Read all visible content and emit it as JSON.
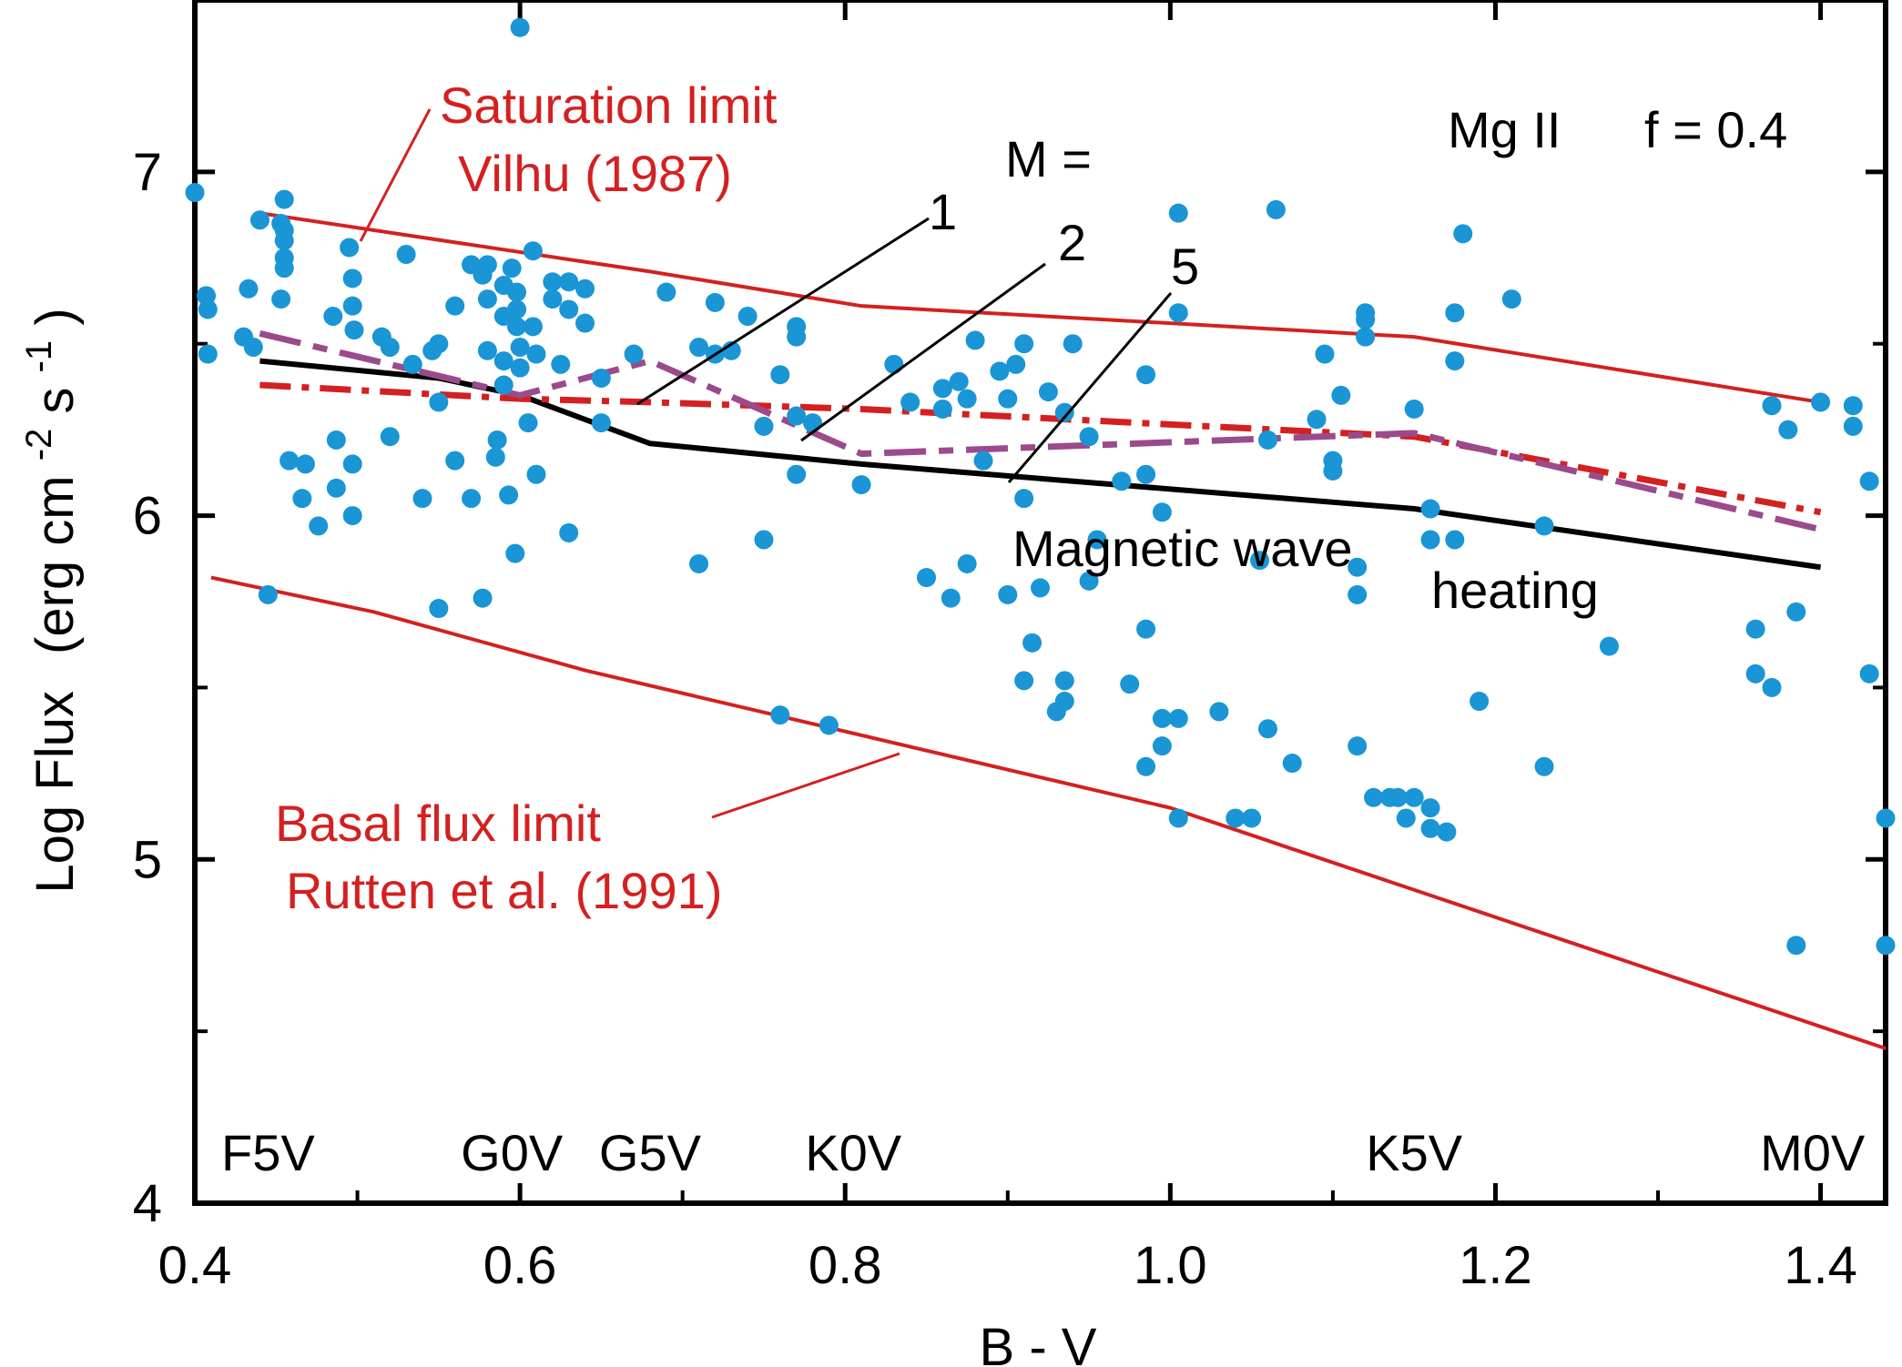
{
  "chart_data": {
    "type": "scatter",
    "xlabel": "B - V",
    "ylabel": "Log Flux",
    "ylabel_unit": {
      "open": "(erg cm",
      "exp1": "-2",
      "mid": "s",
      "exp2": "-1",
      "close": ")"
    },
    "xlim": [
      0.4,
      1.44
    ],
    "ylim": [
      4.0,
      7.5
    ],
    "x_ticks": [
      0.4,
      0.6,
      0.8,
      1.0,
      1.2,
      1.4
    ],
    "x_tick_labels": [
      "0.4",
      "0.6",
      "0.8",
      "1.0",
      "1.2",
      "1.4"
    ],
    "y_ticks": [
      4,
      5,
      6,
      7
    ],
    "y_tick_labels": [
      "4",
      "5",
      "6",
      "7"
    ],
    "colors": {
      "points": "#1a95d5",
      "limits": "#d42020",
      "m1": "#000000",
      "m2": "#d42020",
      "m5": "#9b4a8c"
    },
    "annotations": {
      "ion": "Mg II",
      "filling": "f = 0.4",
      "m_label": "M =",
      "m1": "1",
      "m2": "2",
      "m5": "5",
      "saturation_line1": "Saturation limit",
      "saturation_line2": "Vilhu (1987)",
      "basal_line1": "Basal flux limit",
      "basal_line2": "Rutten et al. (1991)",
      "mag_wave": "Magnetic wave",
      "heating": "heating"
    },
    "spectral_types": [
      {
        "label": "F5V",
        "x": 0.445
      },
      {
        "label": "G0V",
        "x": 0.595
      },
      {
        "label": "G5V",
        "x": 0.68
      },
      {
        "label": "K0V",
        "x": 0.805
      },
      {
        "label": "K5V",
        "x": 1.15
      },
      {
        "label": "M0V",
        "x": 1.395
      }
    ],
    "series": [
      {
        "name": "Saturation limit",
        "style": "solid",
        "color": "#d42020",
        "x": [
          0.44,
          0.68,
          0.81,
          1.15,
          1.4
        ],
        "y": [
          6.88,
          6.71,
          6.61,
          6.52,
          6.33
        ]
      },
      {
        "name": "Basal flux limit",
        "style": "solid",
        "color": "#d42020",
        "x": [
          0.41,
          0.51,
          0.64,
          1.0,
          1.44
        ],
        "y": [
          5.82,
          5.72,
          5.55,
          5.15,
          4.45
        ]
      },
      {
        "name": "1",
        "style": "solid",
        "color": "#000000",
        "x": [
          0.44,
          0.55,
          0.6,
          0.68,
          0.81,
          1.15,
          1.4
        ],
        "y": [
          6.45,
          6.4,
          6.35,
          6.21,
          6.15,
          6.02,
          5.85
        ]
      },
      {
        "name": "2",
        "style": "dashdot",
        "color": "#d42020",
        "x": [
          0.44,
          0.6,
          0.68,
          0.81,
          1.15,
          1.4
        ],
        "y": [
          6.38,
          6.34,
          6.33,
          6.31,
          6.23,
          6.01
        ]
      },
      {
        "name": "5",
        "style": "longdash",
        "color": "#9b4a8c",
        "x": [
          0.44,
          0.6,
          0.68,
          0.81,
          1.15,
          1.4
        ],
        "y": [
          6.53,
          6.35,
          6.45,
          6.18,
          6.24,
          5.96
        ]
      }
    ],
    "points": [
      [
        0.4,
        6.94
      ],
      [
        0.407,
        6.64
      ],
      [
        0.408,
        6.6
      ],
      [
        0.408,
        6.47
      ],
      [
        0.43,
        6.52
      ],
      [
        0.433,
        6.66
      ],
      [
        0.436,
        6.49
      ],
      [
        0.44,
        6.86
      ],
      [
        0.445,
        5.77
      ],
      [
        0.453,
        6.85
      ],
      [
        0.455,
        6.92
      ],
      [
        0.455,
        6.83
      ],
      [
        0.455,
        6.8
      ],
      [
        0.455,
        6.75
      ],
      [
        0.455,
        6.72
      ],
      [
        0.453,
        6.63
      ],
      [
        0.458,
        6.16
      ],
      [
        0.466,
        6.05
      ],
      [
        0.468,
        6.15
      ],
      [
        0.476,
        5.97
      ],
      [
        0.485,
        6.58
      ],
      [
        0.487,
        6.22
      ],
      [
        0.487,
        6.08
      ],
      [
        0.495,
        6.78
      ],
      [
        0.497,
        6.69
      ],
      [
        0.497,
        6.61
      ],
      [
        0.498,
        6.54
      ],
      [
        0.497,
        6.15
      ],
      [
        0.497,
        6.0
      ],
      [
        0.515,
        6.52
      ],
      [
        0.52,
        6.49
      ],
      [
        0.52,
        6.23
      ],
      [
        0.53,
        6.76
      ],
      [
        0.534,
        6.44
      ],
      [
        0.54,
        6.05
      ],
      [
        0.546,
        6.48
      ],
      [
        0.55,
        6.5
      ],
      [
        0.55,
        6.33
      ],
      [
        0.55,
        5.73
      ],
      [
        0.56,
        6.16
      ],
      [
        0.56,
        6.61
      ],
      [
        0.57,
        6.73
      ],
      [
        0.57,
        6.05
      ],
      [
        0.577,
        6.7
      ],
      [
        0.577,
        5.76
      ],
      [
        0.58,
        6.73
      ],
      [
        0.58,
        6.63
      ],
      [
        0.58,
        6.48
      ],
      [
        0.586,
        6.22
      ],
      [
        0.585,
        6.17
      ],
      [
        0.59,
        6.58
      ],
      [
        0.59,
        6.45
      ],
      [
        0.59,
        6.38
      ],
      [
        0.59,
        6.67
      ],
      [
        0.593,
        6.06
      ],
      [
        0.595,
        6.72
      ],
      [
        0.598,
        6.65
      ],
      [
        0.598,
        6.6
      ],
      [
        0.598,
        6.55
      ],
      [
        0.597,
        5.89
      ],
      [
        0.6,
        6.49
      ],
      [
        0.6,
        6.43
      ],
      [
        0.6,
        7.42
      ],
      [
        0.605,
        6.27
      ],
      [
        0.608,
        6.77
      ],
      [
        0.608,
        6.55
      ],
      [
        0.61,
        6.47
      ],
      [
        0.61,
        6.12
      ],
      [
        0.62,
        6.68
      ],
      [
        0.62,
        6.63
      ],
      [
        0.625,
        6.44
      ],
      [
        0.63,
        5.95
      ],
      [
        0.63,
        6.6
      ],
      [
        0.63,
        6.68
      ],
      [
        0.64,
        6.56
      ],
      [
        0.64,
        6.66
      ],
      [
        0.65,
        6.27
      ],
      [
        0.65,
        6.4
      ],
      [
        0.67,
        6.47
      ],
      [
        0.69,
        6.65
      ],
      [
        0.71,
        6.49
      ],
      [
        0.71,
        5.86
      ],
      [
        0.72,
        6.62
      ],
      [
        0.72,
        6.47
      ],
      [
        0.73,
        6.48
      ],
      [
        0.74,
        6.58
      ],
      [
        0.75,
        5.93
      ],
      [
        0.75,
        6.26
      ],
      [
        0.76,
        6.41
      ],
      [
        0.76,
        5.42
      ],
      [
        0.77,
        6.55
      ],
      [
        0.77,
        6.52
      ],
      [
        0.77,
        6.29
      ],
      [
        0.77,
        6.12
      ],
      [
        0.78,
        6.27
      ],
      [
        0.79,
        5.39
      ],
      [
        0.81,
        6.09
      ],
      [
        0.83,
        6.44
      ],
      [
        0.84,
        6.33
      ],
      [
        0.85,
        5.82
      ],
      [
        0.86,
        6.37
      ],
      [
        0.86,
        6.31
      ],
      [
        0.865,
        5.76
      ],
      [
        0.87,
        6.39
      ],
      [
        0.875,
        5.86
      ],
      [
        0.875,
        6.34
      ],
      [
        0.88,
        6.51
      ],
      [
        0.885,
        6.16
      ],
      [
        0.895,
        6.42
      ],
      [
        0.9,
        6.34
      ],
      [
        0.9,
        5.77
      ],
      [
        0.905,
        6.44
      ],
      [
        0.91,
        6.5
      ],
      [
        0.91,
        5.52
      ],
      [
        0.91,
        6.05
      ],
      [
        0.915,
        5.63
      ],
      [
        0.92,
        5.79
      ],
      [
        0.925,
        6.36
      ],
      [
        0.93,
        5.43
      ],
      [
        0.935,
        6.3
      ],
      [
        0.935,
        5.52
      ],
      [
        0.935,
        5.46
      ],
      [
        0.94,
        6.5
      ],
      [
        0.95,
        6.23
      ],
      [
        0.95,
        5.81
      ],
      [
        0.955,
        5.93
      ],
      [
        0.97,
        6.1
      ],
      [
        0.975,
        5.51
      ],
      [
        0.985,
        6.41
      ],
      [
        0.985,
        6.12
      ],
      [
        0.985,
        5.67
      ],
      [
        0.985,
        5.27
      ],
      [
        0.995,
        5.33
      ],
      [
        0.995,
        5.41
      ],
      [
        0.995,
        6.01
      ],
      [
        1.005,
        5.41
      ],
      [
        1.005,
        5.12
      ],
      [
        1.005,
        6.59
      ],
      [
        1.005,
        6.88
      ],
      [
        1.03,
        5.43
      ],
      [
        1.04,
        5.12
      ],
      [
        1.05,
        5.12
      ],
      [
        1.055,
        5.87
      ],
      [
        1.06,
        5.38
      ],
      [
        1.06,
        6.22
      ],
      [
        1.065,
        6.89
      ],
      [
        1.075,
        5.28
      ],
      [
        1.09,
        6.28
      ],
      [
        1.095,
        6.47
      ],
      [
        1.1,
        6.16
      ],
      [
        1.1,
        6.13
      ],
      [
        1.105,
        6.35
      ],
      [
        1.115,
        5.85
      ],
      [
        1.115,
        5.77
      ],
      [
        1.115,
        5.33
      ],
      [
        1.12,
        6.59
      ],
      [
        1.12,
        6.57
      ],
      [
        1.12,
        6.52
      ],
      [
        1.125,
        5.18
      ],
      [
        1.135,
        5.18
      ],
      [
        1.14,
        5.18
      ],
      [
        1.145,
        5.12
      ],
      [
        1.15,
        5.18
      ],
      [
        1.15,
        6.31
      ],
      [
        1.16,
        6.02
      ],
      [
        1.16,
        5.93
      ],
      [
        1.16,
        5.15
      ],
      [
        1.16,
        5.09
      ],
      [
        1.17,
        5.08
      ],
      [
        1.175,
        6.45
      ],
      [
        1.175,
        6.59
      ],
      [
        1.175,
        5.93
      ],
      [
        1.18,
        6.82
      ],
      [
        1.19,
        5.46
      ],
      [
        1.21,
        6.63
      ],
      [
        1.23,
        5.97
      ],
      [
        1.23,
        5.27
      ],
      [
        1.27,
        5.62
      ],
      [
        1.36,
        5.67
      ],
      [
        1.36,
        5.54
      ],
      [
        1.37,
        6.32
      ],
      [
        1.37,
        5.5
      ],
      [
        1.38,
        6.25
      ],
      [
        1.385,
        5.72
      ],
      [
        1.385,
        4.75
      ],
      [
        1.4,
        6.33
      ],
      [
        1.42,
        6.32
      ],
      [
        1.42,
        6.26
      ],
      [
        1.43,
        6.1
      ],
      [
        1.43,
        5.54
      ],
      [
        1.44,
        5.12
      ],
      [
        1.44,
        4.75
      ]
    ]
  }
}
